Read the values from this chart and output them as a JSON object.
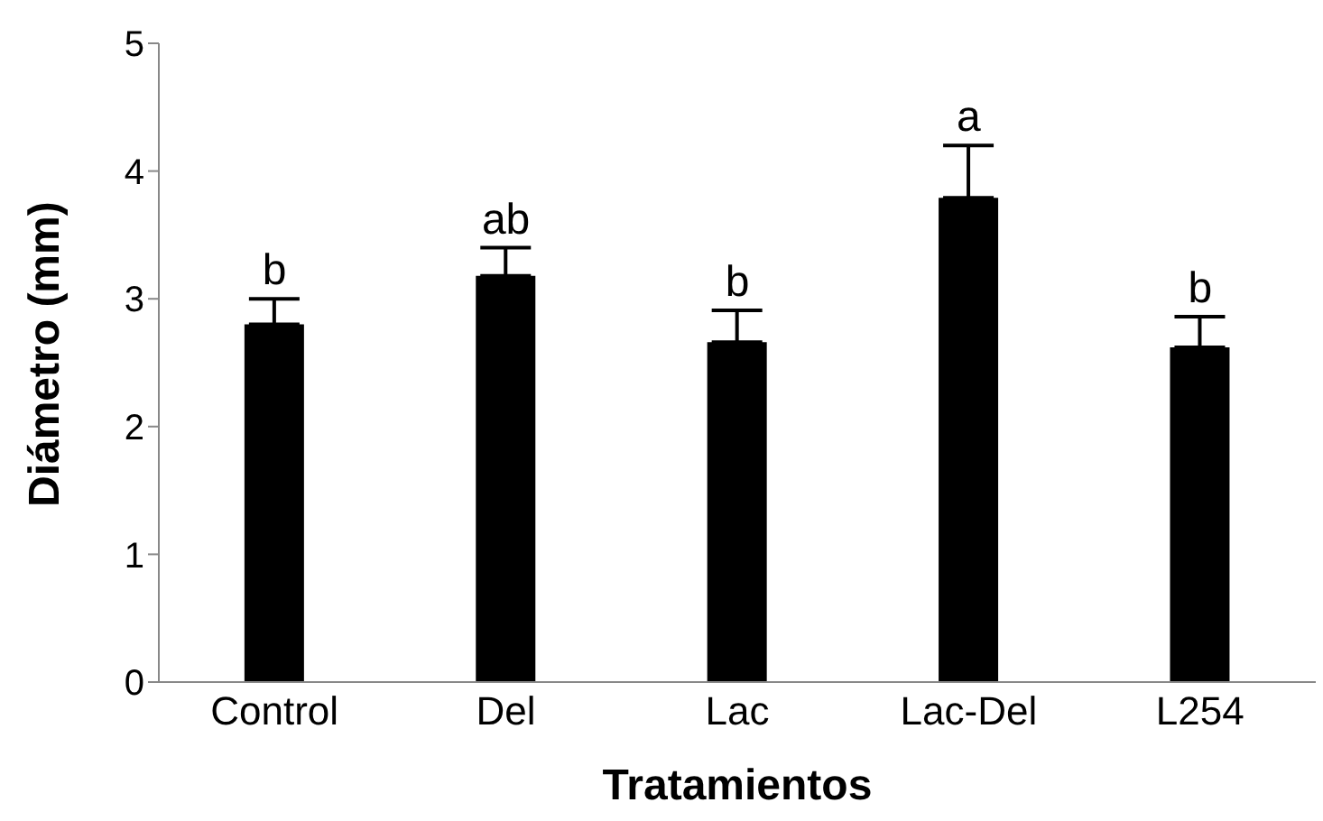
{
  "chart_data": {
    "type": "bar",
    "xlabel": "Tratamientos",
    "ylabel": "Diámetro (mm)",
    "categories": [
      "Control",
      "Del",
      "Lac",
      "Lac-Del",
      "L254"
    ],
    "values": [
      2.8,
      3.18,
      2.66,
      3.79,
      2.62
    ],
    "errors": [
      [
        2.8,
        3.0
      ],
      [
        3.18,
        3.4
      ],
      [
        2.66,
        2.91
      ],
      [
        3.79,
        4.2
      ],
      [
        2.62,
        2.86
      ]
    ],
    "color": "#000000",
    "ylim": [
      0,
      5
    ],
    "yticks": [
      0,
      1,
      2,
      3,
      4,
      5
    ],
    "grid": false,
    "legend": false,
    "annotations": [
      {
        "text": "b",
        "x": "Control",
        "y": 3.0
      },
      {
        "text": "ab",
        "x": "Del",
        "y": 3.4
      },
      {
        "text": "b",
        "x": "Lac",
        "y": 2.91
      },
      {
        "text": "a",
        "x": "Lac-Del",
        "y": 4.2
      },
      {
        "text": "b",
        "x": "L254",
        "y": 2.86
      }
    ]
  }
}
